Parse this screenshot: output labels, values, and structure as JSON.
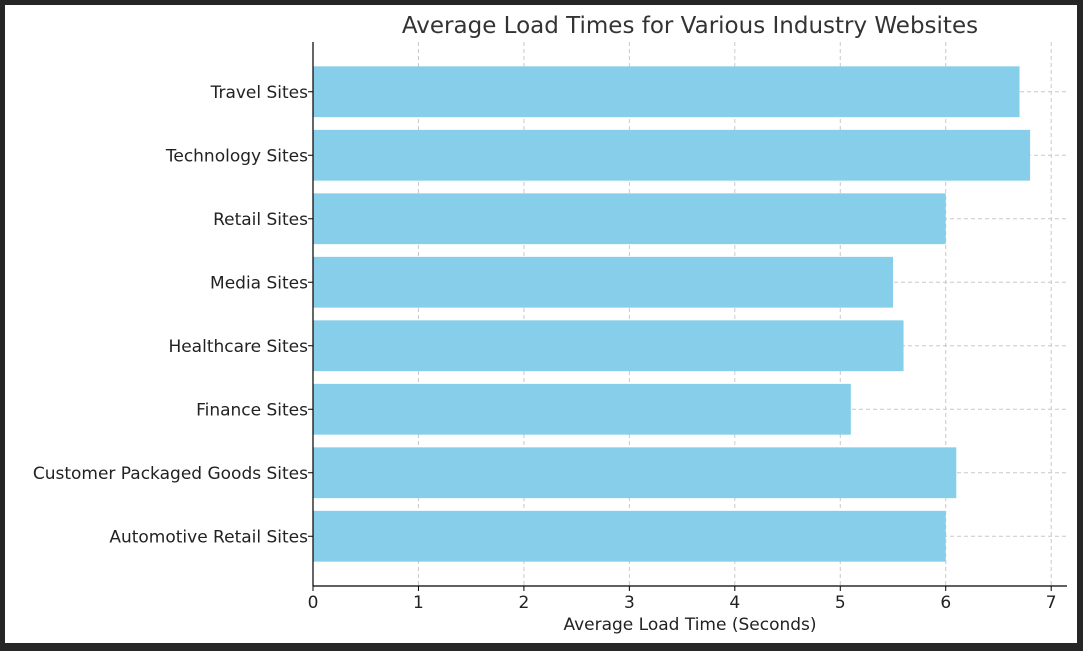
{
  "chart_data": {
    "type": "bar",
    "orientation": "horizontal",
    "title": "Average Load Times for Various Industry Websites",
    "xlabel": "Average Load Time (Seconds)",
    "ylabel": "",
    "categories": [
      "Automotive Retail Sites",
      "Customer Packaged Goods Sites",
      "Finance Sites",
      "Healthcare Sites",
      "Media Sites",
      "Retail Sites",
      "Technology Sites",
      "Travel Sites"
    ],
    "values": [
      6.0,
      6.1,
      5.1,
      5.6,
      5.5,
      6.0,
      6.8,
      6.7
    ],
    "xlim": [
      0,
      7.15
    ],
    "xticks": [
      "0",
      "1",
      "2",
      "3",
      "4",
      "5",
      "6",
      "7"
    ],
    "bar_color": "#87ceeb",
    "grid": true
  }
}
